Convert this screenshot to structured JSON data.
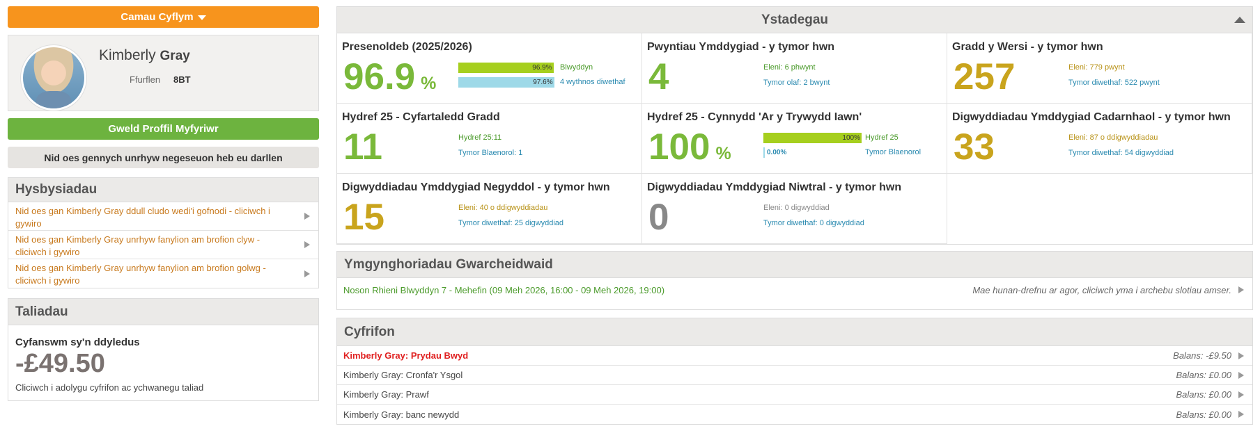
{
  "quick_actions": {
    "label": "Camau Cyflym"
  },
  "profile": {
    "first_name": "Kimberly",
    "surname": "Gray",
    "form_label": "Ffurflen",
    "form_value": "8BT"
  },
  "view_profile_button": "Gweld Proffil Myfyriwr",
  "messages_status": "Nid oes gennych unrhyw negeseuon heb eu darllen",
  "notifications": {
    "title": "Hysbysiadau",
    "items": [
      {
        "text": "Nid oes gan Kimberly Gray ddull cludo wedi'i gofnodi - cliciwch i gywiro"
      },
      {
        "text": "Nid oes gan Kimberly Gray unrhyw fanylion am brofion clyw - cliciwch i gywiro"
      },
      {
        "text": "Nid oes gan Kimberly Gray unrhyw fanylion am brofion golwg - cliciwch i gywiro"
      }
    ]
  },
  "payments": {
    "title": "Taliadau",
    "total_label": "Cyfanswm sy'n ddyledus",
    "total_value": "-£49.50",
    "note": "Cliciwch i adolygu cyfrifon ac ychwanegu taliad"
  },
  "stats": {
    "title": "Ystadegau",
    "attendance": {
      "title": "Presenoldeb (2025/2026)",
      "value": "96.9",
      "unit": "%",
      "bars": [
        {
          "value_label": "96.9%",
          "fraction": 0.969,
          "caption": "Blwyddyn",
          "color": "#a6cf1e"
        },
        {
          "value_label": "97.6%",
          "fraction": 0.976,
          "caption": "4 wythnos diwethaf",
          "color": "#9ed9e8"
        }
      ]
    },
    "behaviour_points": {
      "title": "Pwyntiau Ymddygiad - y tymor hwn",
      "value": "4",
      "line1": "Eleni: 6 phwynt",
      "line2": "Tymor olaf: 2 bwynt"
    },
    "lesson_grade": {
      "title": "Gradd y Wersi - y tymor hwn",
      "value": "257",
      "line1": "Eleni: 779 pwynt",
      "line2": "Tymor diwethaf: 522 pwynt"
    },
    "avg_grade": {
      "title": "Hydref 25 - Cyfartaledd Gradd",
      "value": "11",
      "line1": "Hydref 25:11",
      "line2": "Tymor Blaenorol: 1"
    },
    "progress": {
      "title": "Hydref 25 - Cynnydd 'Ar y Trywydd Iawn'",
      "value": "100",
      "unit": "%",
      "bars": [
        {
          "value_label": "100%",
          "fraction": 1.0,
          "caption": "Hydref 25",
          "color": "#a6cf1e"
        },
        {
          "value_label": "0.00%",
          "fraction": 0.0,
          "caption": "Tymor Blaenorol",
          "color": "#9ed9e8"
        }
      ]
    },
    "positive_events": {
      "title": "Digwyddiadau Ymddygiad Cadarnhaol - y tymor hwn",
      "value": "33",
      "line1": "Eleni: 87 o ddigwyddiadau",
      "line2": "Tymor diwethaf: 54 digwyddiad"
    },
    "negative_events": {
      "title": "Digwyddiadau Ymddygiad Negyddol - y tymor hwn",
      "value": "15",
      "line1": "Eleni: 40 o ddigwyddiadau",
      "line2": "Tymor diwethaf: 25 digwyddiad"
    },
    "neutral_events": {
      "title": "Digwyddiadau Ymddygiad Niwtral - y tymor hwn",
      "value": "0",
      "line1": "Eleni: 0 digwyddiad",
      "line2": "Tymor diwethaf: 0 digwyddiad"
    }
  },
  "guardian": {
    "title": "Ymgynghoriadau Gwarcheidwaid",
    "event": "Noson Rhieni Blwyddyn 7 - Mehefin (09 Meh 2026, 16:00 - 09 Meh 2026, 19:00)",
    "note": "Mae hunan-drefnu ar agor, cliciwch yma i archebu slotiau amser."
  },
  "accounts": {
    "title": "Cyfrifon",
    "rows": [
      {
        "name": "Kimberly Gray: Prydau Bwyd",
        "balance": "Balans: -£9.50"
      },
      {
        "name": "Kimberly Gray: Cronfa'r Ysgol",
        "balance": "Balans: £0.00"
      },
      {
        "name": "Kimberly Gray: Prawf",
        "balance": "Balans: £0.00"
      },
      {
        "name": "Kimberly Gray: banc newydd",
        "balance": "Balans: £0.00"
      }
    ]
  },
  "colors": {
    "orange": "#f7941d",
    "green": "#6db33f",
    "stat_green": "#7ab93a",
    "stat_gold": "#c9a41d",
    "alert_red": "#e02020"
  },
  "icons": [
    "caret-down-icon",
    "caret-up-icon",
    "arrow-right-icon"
  ]
}
